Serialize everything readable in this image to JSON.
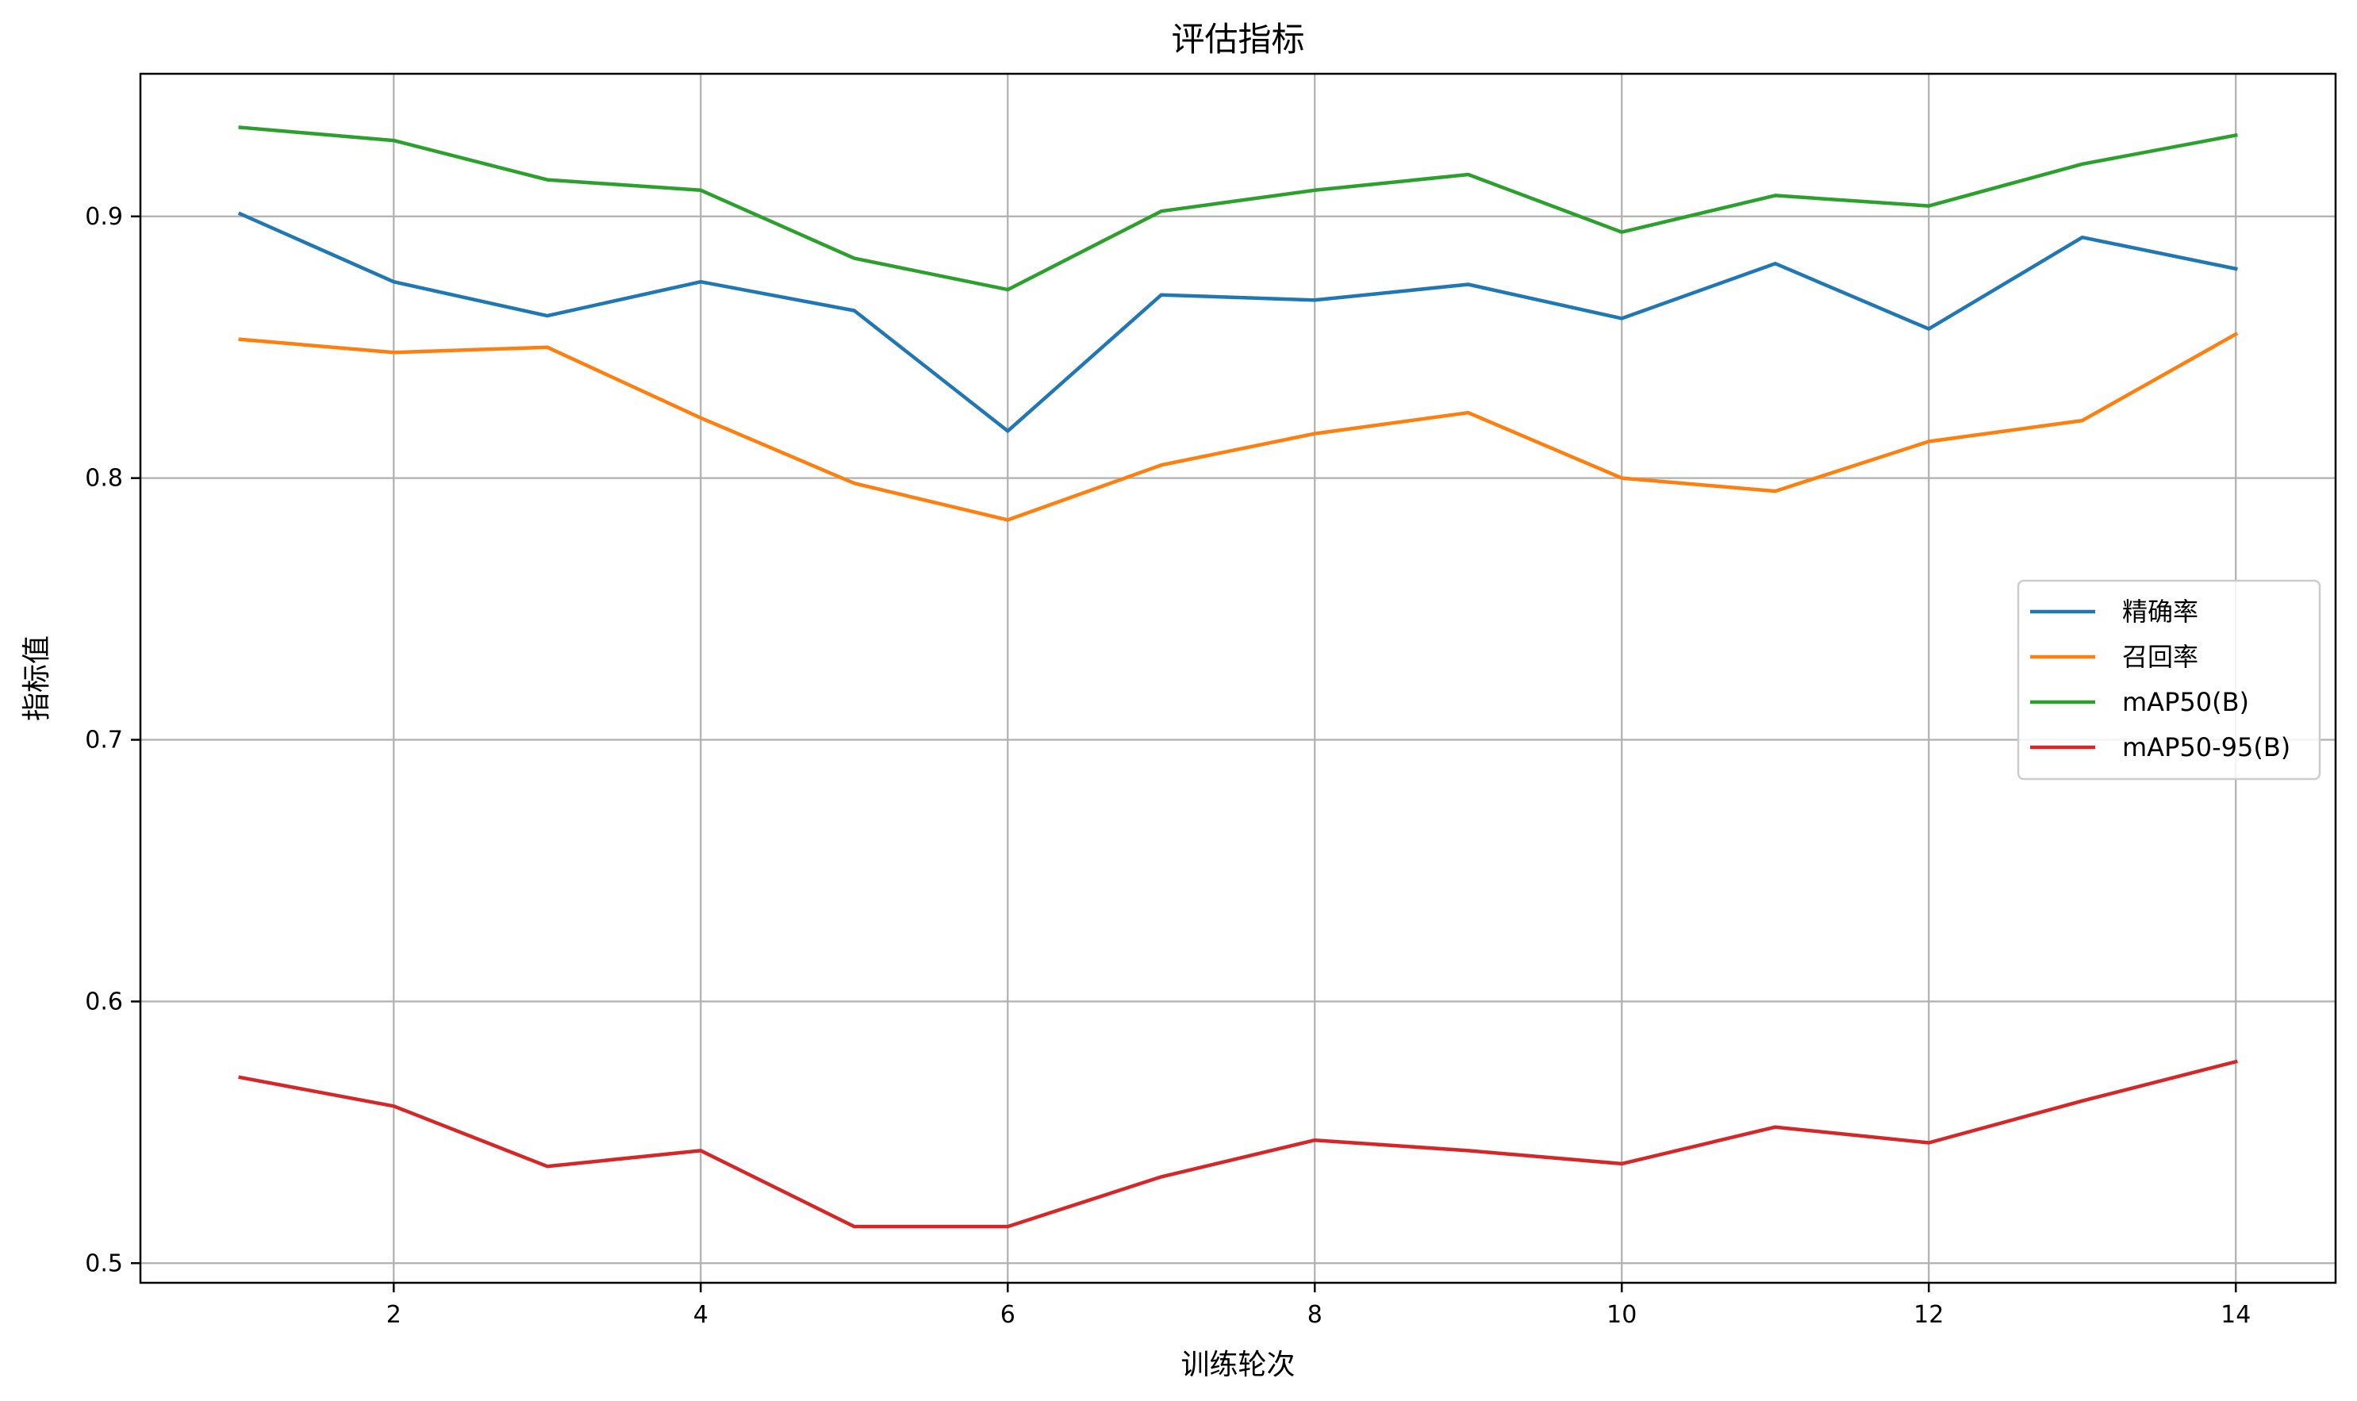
{
  "chart_data": {
    "type": "line",
    "title": "评估指标",
    "xlabel": "训练轮次",
    "ylabel": "指标值",
    "x": [
      1,
      2,
      3,
      4,
      5,
      6,
      7,
      8,
      9,
      10,
      11,
      12,
      13,
      14
    ],
    "xlim": [
      0.35,
      14.65
    ],
    "ylim": [
      0.4925,
      0.9545
    ],
    "xticks": [
      2,
      4,
      6,
      8,
      10,
      12,
      14
    ],
    "xtick_labels": [
      "2",
      "4",
      "6",
      "8",
      "10",
      "12",
      "14"
    ],
    "yticks": [
      0.5,
      0.6,
      0.7,
      0.8,
      0.9
    ],
    "ytick_labels": [
      "0.5",
      "0.6",
      "0.7",
      "0.8",
      "0.9"
    ],
    "grid": true,
    "legend_position": "center-right",
    "series": [
      {
        "name": "精确率",
        "color": "#1f77b4",
        "values": [
          0.901,
          0.875,
          0.862,
          0.875,
          0.864,
          0.818,
          0.87,
          0.868,
          0.874,
          0.861,
          0.882,
          0.857,
          0.892,
          0.88
        ]
      },
      {
        "name": "召回率",
        "color": "#ff7f0e",
        "values": [
          0.853,
          0.848,
          0.85,
          0.823,
          0.798,
          0.784,
          0.805,
          0.817,
          0.825,
          0.8,
          0.795,
          0.814,
          0.822,
          0.855
        ]
      },
      {
        "name": "mAP50(B)",
        "color": "#2ca02c",
        "values": [
          0.934,
          0.929,
          0.914,
          0.91,
          0.884,
          0.872,
          0.902,
          0.91,
          0.916,
          0.894,
          0.908,
          0.904,
          0.92,
          0.931
        ]
      },
      {
        "name": "mAP50-95(B)",
        "color": "#d62728",
        "values": [
          0.571,
          0.56,
          0.537,
          0.543,
          0.514,
          0.514,
          0.533,
          0.547,
          0.543,
          0.538,
          0.552,
          0.546,
          0.562,
          0.577
        ]
      }
    ]
  }
}
